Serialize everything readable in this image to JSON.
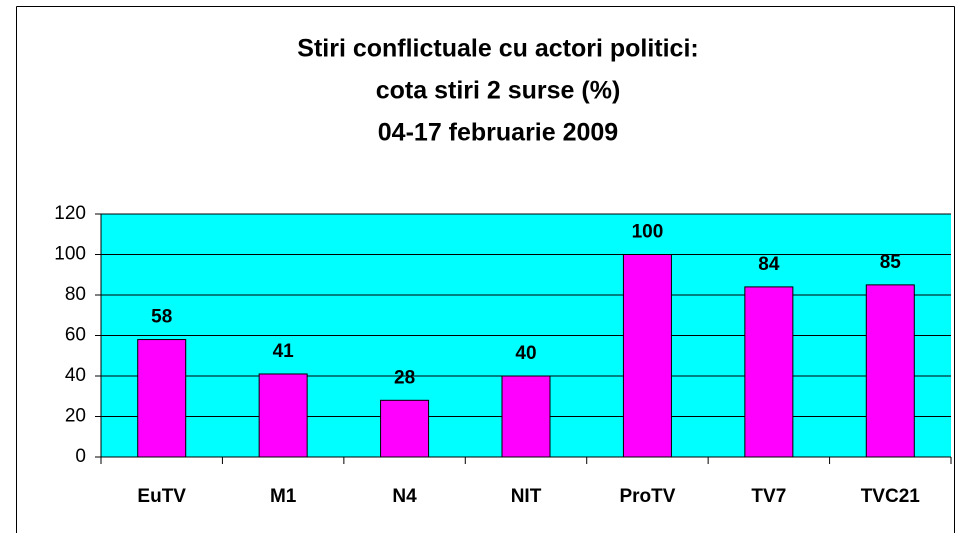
{
  "chart_data": {
    "type": "bar",
    "title": [
      "Stiri conflictuale cu actori politici:",
      "cota stiri 2 surse (%)",
      "04-17 februarie 2009"
    ],
    "categories": [
      "EuTV",
      "M1",
      "N4",
      "NIT",
      "ProTV",
      "TV7",
      "TVC21"
    ],
    "values": [
      58,
      41,
      28,
      40,
      100,
      84,
      85
    ],
    "color": "#ff00ff",
    "background": "#00ffff",
    "ylim": [
      0,
      120
    ],
    "yticks": [
      0,
      20,
      40,
      60,
      80,
      100,
      120
    ],
    "grid": true
  }
}
